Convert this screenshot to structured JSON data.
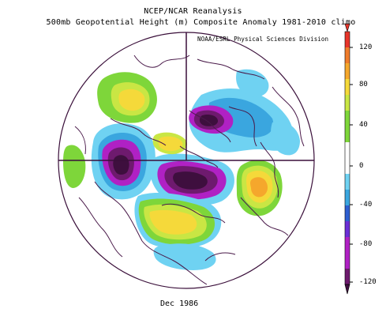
{
  "titles": {
    "line1": "NCEP/NCAR Reanalysis",
    "line2": "500mb Geopotential Height (m) Composite Anomaly 1981-2010 climo",
    "credit": "NOAA/ESRL Physical Sciences Division"
  },
  "date_label": "Dec 1986",
  "colorbar": {
    "labels": [
      "120",
      "80",
      "40",
      "0",
      "-40",
      "-80",
      "-120"
    ],
    "colors": {
      "pos_120": "#e8352a",
      "pos_100": "#f07c2b",
      "pos_80": "#f5a72c",
      "pos_60": "#f5d93a",
      "pos_40": "#c9e644",
      "pos_20": "#7ed63a",
      "zero": "#ffffff",
      "neg_20": "#6fd2f2",
      "neg_40": "#3aa6df",
      "neg_60": "#2e5fd0",
      "neg_80": "#6b2fd6",
      "neg_100": "#b021c4",
      "neg_120": "#6e1a6e",
      "neg_max": "#3e0f3e"
    }
  },
  "map": {
    "projection": "polar stereographic, North Pole",
    "coastline_color": "#4a1a4a",
    "grid_color": "#3a0f3a"
  }
}
